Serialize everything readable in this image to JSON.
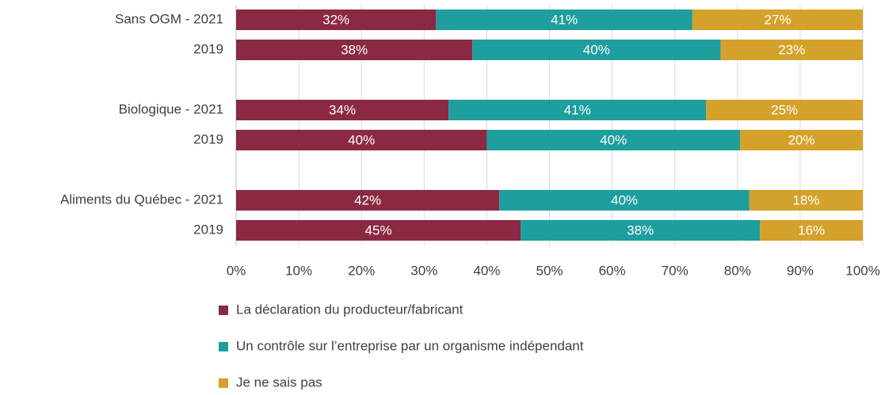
{
  "chart_data": {
    "type": "stacked_bar_horizontal",
    "categories": [
      "Sans OGM - 2021",
      "2019",
      "Biologique - 2021",
      "2019",
      "Aliments du Québec - 2021",
      "2019"
    ],
    "series": [
      {
        "name": "La déclaration du producteur/fabricant",
        "color": "#8b2942",
        "values": [
          31.9,
          37.7,
          33.9,
          40.0,
          42.0,
          45.4
        ],
        "value_labels": [
          "32%",
          "38%",
          "34%",
          "40%",
          "42%",
          "45%"
        ]
      },
      {
        "name": "Un contrôle sur l’entreprise par un organisme indépendant",
        "color": "#1f9e9e",
        "values": [
          40.9,
          39.6,
          41.1,
          40.4,
          39.9,
          38.2
        ],
        "value_labels": [
          "41%",
          "40%",
          "41%",
          "40%",
          "40%",
          "38%"
        ]
      },
      {
        "name": "Je ne sais pas",
        "color": "#d4a12a",
        "values": [
          27.2,
          22.7,
          25.0,
          19.6,
          18.1,
          16.4
        ],
        "value_labels": [
          "27%",
          "23%",
          "25%",
          "20%",
          "18%",
          "16%"
        ]
      }
    ],
    "xlim": [
      0,
      100
    ],
    "xticks": [
      {
        "value": 0,
        "label": "0%"
      },
      {
        "value": 10,
        "label": "10%"
      },
      {
        "value": 20,
        "label": "20%"
      },
      {
        "value": 30,
        "label": "30%"
      },
      {
        "value": 40,
        "label": "40%"
      },
      {
        "value": 50,
        "label": "50%"
      },
      {
        "value": 60,
        "label": "60%"
      },
      {
        "value": 70,
        "label": "70%"
      },
      {
        "value": 80,
        "label": "80%"
      },
      {
        "value": 90,
        "label": "90%"
      },
      {
        "value": 100,
        "label": "100%"
      }
    ],
    "grid": true,
    "legend": "bottom"
  }
}
